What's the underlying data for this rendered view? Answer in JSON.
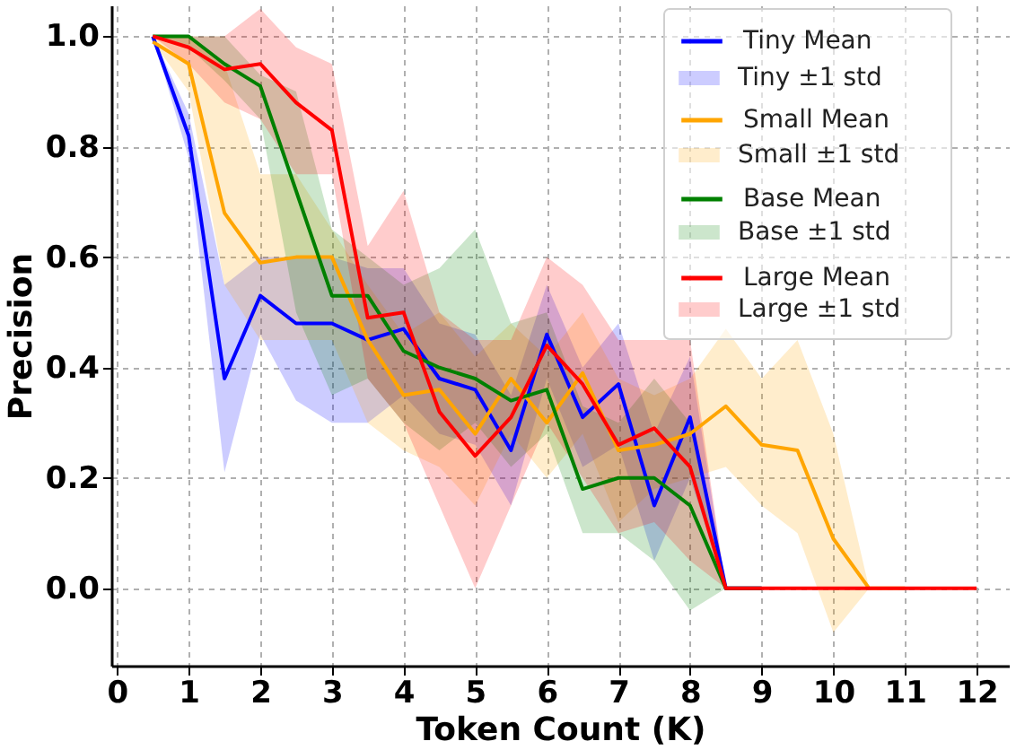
{
  "chart_data": {
    "type": "line",
    "xlabel": "Token Count (K)",
    "ylabel": "Precision",
    "x": [
      0.5,
      1.0,
      1.5,
      2.0,
      2.5,
      3.0,
      3.5,
      4.0,
      4.5,
      5.0,
      5.5,
      6.0,
      6.5,
      7.0,
      7.5,
      8.0,
      8.5,
      9.0,
      9.5,
      10.0,
      10.5,
      11.0,
      11.5,
      12.0
    ],
    "series": [
      {
        "name": "Tiny Mean",
        "color": "#0000ff",
        "values": [
          1.0,
          0.82,
          0.38,
          0.53,
          0.48,
          0.48,
          0.45,
          0.47,
          0.38,
          0.36,
          0.25,
          0.46,
          0.31,
          0.37,
          0.15,
          0.31,
          0,
          0,
          null,
          null,
          null,
          null,
          null,
          null
        ]
      },
      {
        "name": "Tiny ±1 std",
        "type": "area",
        "color": "#0000ff",
        "values": [
          null,
          null,
          null,
          null,
          null,
          null,
          null,
          null,
          null,
          null,
          null,
          null,
          null,
          null,
          null,
          null,
          null,
          null,
          null,
          null,
          null,
          null,
          null,
          null
        ],
        "lower": [
          1.0,
          0.78,
          0.21,
          0.46,
          0.34,
          0.3,
          0.3,
          0.35,
          0.28,
          0.26,
          0.15,
          0.38,
          0.22,
          0.26,
          0.05,
          0.2,
          0,
          0,
          0,
          0,
          0,
          0,
          0,
          0
        ],
        "upper": [
          1.0,
          0.86,
          0.55,
          0.6,
          0.6,
          0.6,
          0.58,
          0.58,
          0.48,
          0.46,
          0.35,
          0.55,
          0.4,
          0.48,
          0.28,
          0.42,
          0,
          0,
          0,
          0,
          0,
          0,
          0,
          0
        ]
      },
      {
        "name": "Small Mean",
        "color": "#ffa500",
        "values": [
          0.99,
          0.95,
          0.68,
          0.59,
          0.6,
          0.6,
          0.45,
          0.35,
          0.36,
          0.28,
          0.38,
          0.3,
          0.39,
          0.25,
          0.26,
          0.28,
          0.33,
          0.26,
          0.25,
          0.09,
          0,
          0,
          null,
          null
        ]
      },
      {
        "name": "Small ±1 std",
        "type": "area",
        "color": "#ffa500",
        "values": [
          null,
          null,
          null,
          null,
          null,
          null,
          null,
          null,
          null,
          null,
          null,
          null,
          null,
          null,
          null,
          null,
          null,
          null,
          null,
          null,
          null,
          null,
          null,
          null
        ],
        "lower": [
          0.99,
          0.9,
          0.55,
          0.45,
          0.45,
          0.45,
          0.3,
          0.25,
          0.22,
          0.15,
          0.28,
          0.2,
          0.28,
          0.12,
          0.18,
          0.2,
          0.22,
          0.15,
          0.1,
          -0.08,
          0,
          0,
          0,
          0
        ],
        "upper": [
          1.0,
          1.0,
          0.95,
          0.75,
          0.75,
          0.65,
          0.55,
          0.46,
          0.5,
          0.42,
          0.48,
          0.42,
          0.5,
          0.38,
          0.35,
          0.38,
          0.47,
          0.38,
          0.45,
          0.28,
          0,
          0,
          0,
          0
        ]
      },
      {
        "name": "Base Mean",
        "color": "#008000",
        "values": [
          1.0,
          1.0,
          0.95,
          0.91,
          0.72,
          0.53,
          0.53,
          0.43,
          0.4,
          0.38,
          0.34,
          0.36,
          0.18,
          0.2,
          0.2,
          0.15,
          0,
          0,
          null,
          null,
          null,
          null,
          null,
          null
        ]
      },
      {
        "name": "Base ±1 std",
        "type": "area",
        "color": "#008000",
        "values": [
          null,
          null,
          null,
          null,
          null,
          null,
          null,
          null,
          null,
          null,
          null,
          null,
          null,
          null,
          null,
          null,
          null,
          null,
          null,
          null,
          null,
          null,
          null,
          null
        ],
        "lower": [
          1.0,
          0.98,
          0.92,
          0.85,
          0.5,
          0.35,
          0.38,
          0.3,
          0.25,
          0.3,
          0.22,
          0.28,
          0.1,
          0.1,
          0.05,
          -0.04,
          0,
          0,
          0,
          0,
          0,
          0,
          0,
          0
        ],
        "upper": [
          1.0,
          1.0,
          1.0,
          0.93,
          0.9,
          0.65,
          0.6,
          0.55,
          0.58,
          0.65,
          0.48,
          0.5,
          0.33,
          0.3,
          0.38,
          0.3,
          0,
          0,
          0,
          0,
          0,
          0,
          0,
          0
        ]
      },
      {
        "name": "Large Mean",
        "color": "#ff0000",
        "values": [
          1.0,
          0.98,
          0.94,
          0.95,
          0.88,
          0.83,
          0.49,
          0.5,
          0.32,
          0.24,
          0.31,
          0.44,
          0.37,
          0.26,
          0.29,
          0.22,
          0,
          0,
          0,
          0,
          0,
          0,
          0,
          0
        ]
      },
      {
        "name": "Large ±1 std",
        "type": "area",
        "color": "#ff0000",
        "values": [
          null,
          null,
          null,
          null,
          null,
          null,
          null,
          null,
          null,
          null,
          null,
          null,
          null,
          null,
          null,
          null,
          null,
          null,
          null,
          null,
          null,
          null,
          null,
          null
        ],
        "lower": [
          1.0,
          0.95,
          0.88,
          0.85,
          0.75,
          0.75,
          0.38,
          0.3,
          0.15,
          0.0,
          0.15,
          0.3,
          0.2,
          0.1,
          0.12,
          0.05,
          0,
          0,
          0,
          0,
          0,
          0,
          0,
          0
        ],
        "upper": [
          1.0,
          1.0,
          1.0,
          1.05,
          0.98,
          0.95,
          0.62,
          0.72,
          0.5,
          0.45,
          0.45,
          0.6,
          0.55,
          0.45,
          0.45,
          0.45,
          0,
          0,
          0,
          0,
          0,
          0,
          0,
          0
        ]
      }
    ],
    "xlim": [
      -0.08,
      12.45
    ],
    "ylim": [
      -0.14,
      1.056
    ],
    "xticks": [
      0,
      1,
      2,
      3,
      4,
      5,
      6,
      7,
      8,
      9,
      10,
      11,
      12
    ],
    "yticks": [
      {
        "value": 0,
        "label": "0.0"
      },
      {
        "value": 0.2,
        "label": "0.2"
      },
      {
        "value": 0.4,
        "label": "0.4"
      },
      {
        "value": 0.6,
        "label": "0.6"
      },
      {
        "value": 0.8,
        "label": "0.8"
      },
      {
        "value": 1.0,
        "label": "1.0"
      }
    ],
    "grid": true,
    "legend": "top right",
    "marker": "none",
    "line_style": "solid"
  }
}
